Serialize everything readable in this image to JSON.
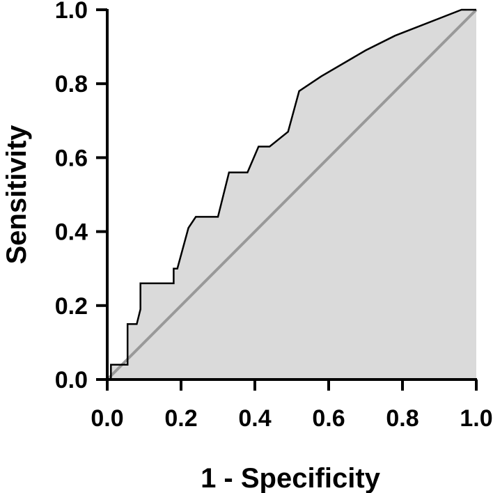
{
  "chart_data": {
    "type": "area",
    "title": "",
    "xlabel": "1 - Specificity",
    "ylabel": "Sensitivity",
    "xlim": [
      0,
      1
    ],
    "ylim": [
      0,
      1
    ],
    "grid": false,
    "x_ticks": [
      "0.0",
      "0.2",
      "0.4",
      "0.6",
      "0.8",
      "1.0"
    ],
    "y_ticks": [
      "0.0",
      "0.2",
      "0.4",
      "0.6",
      "0.8",
      "1.0"
    ],
    "series": [
      {
        "x": [
          0.0,
          0.01,
          0.01,
          0.055,
          0.055,
          0.08,
          0.09,
          0.09,
          0.18,
          0.18,
          0.19,
          0.22,
          0.24,
          0.3,
          0.33,
          0.38,
          0.41,
          0.44,
          0.49,
          0.52,
          0.58,
          0.7,
          0.78,
          0.96,
          1.0
        ],
        "y": [
          0.0,
          0.0,
          0.04,
          0.04,
          0.15,
          0.15,
          0.19,
          0.26,
          0.26,
          0.3,
          0.3,
          0.41,
          0.44,
          0.44,
          0.56,
          0.56,
          0.63,
          0.63,
          0.67,
          0.78,
          0.82,
          0.89,
          0.93,
          1.0,
          1.0
        ],
        "fill": "#dadada",
        "line_color": "#000000"
      }
    ],
    "reference_line": {
      "x": [
        0,
        1
      ],
      "y": [
        0,
        1
      ],
      "color": "#999999"
    }
  }
}
